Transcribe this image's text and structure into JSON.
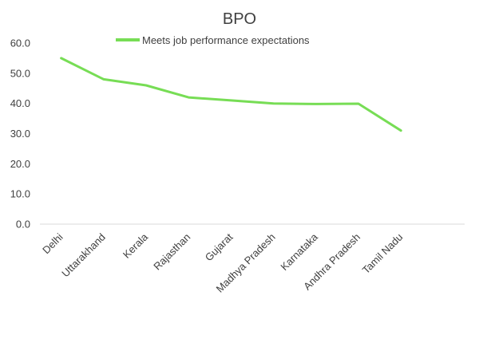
{
  "chart_data": {
    "type": "line",
    "title": "BPO",
    "categories": [
      "Delhi",
      "Uttarakhand",
      "Kerala",
      "Rajasthan",
      "Gujarat",
      "Madhya Pradesh",
      "Karnataka",
      "Andhra Pradesh",
      "Tamil Nadu"
    ],
    "series": [
      {
        "name": "Meets job performance expectations",
        "values": [
          55.0,
          48.0,
          46.0,
          42.0,
          41.0,
          40.0,
          39.8,
          39.9,
          31.0
        ],
        "color": "#77dd55"
      }
    ],
    "y_ticks": [
      "0.0",
      "10.0",
      "20.0",
      "30.0",
      "40.0",
      "50.0",
      "60.0"
    ],
    "ylim": [
      0,
      60
    ],
    "xlabel": "",
    "ylabel": "",
    "grid": false,
    "legend_position": "top"
  }
}
